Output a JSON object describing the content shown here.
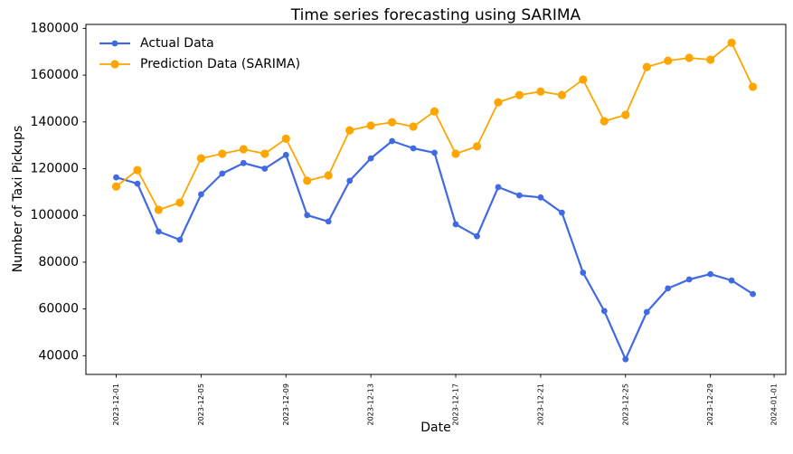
{
  "figure": {
    "title": "Time series forecasting using SARIMA",
    "xlabel": "Date",
    "ylabel": "Number of Taxi Pickups"
  },
  "chart_data": {
    "type": "line",
    "title": "Time series forecasting using SARIMA",
    "xlabel": "Date",
    "ylabel": "Number of Taxi Pickups",
    "grid": false,
    "legend_position": "upper left",
    "ylim": [
      32000,
      181700
    ],
    "yticks": [
      40000,
      60000,
      80000,
      100000,
      120000,
      140000,
      160000,
      180000
    ],
    "xticks": [
      "2023-12-01",
      "2023-12-05",
      "2023-12-09",
      "2023-12-13",
      "2023-12-17",
      "2023-12-21",
      "2023-12-25",
      "2023-12-29",
      "2024-01-01"
    ],
    "x": [
      "2023-12-01",
      "2023-12-02",
      "2023-12-03",
      "2023-12-04",
      "2023-12-05",
      "2023-12-06",
      "2023-12-07",
      "2023-12-08",
      "2023-12-09",
      "2023-12-10",
      "2023-12-11",
      "2023-12-12",
      "2023-12-13",
      "2023-12-14",
      "2023-12-15",
      "2023-12-16",
      "2023-12-17",
      "2023-12-18",
      "2023-12-19",
      "2023-12-20",
      "2023-12-21",
      "2023-12-22",
      "2023-12-23",
      "2023-12-24",
      "2023-12-25",
      "2023-12-26",
      "2023-12-27",
      "2023-12-28",
      "2023-12-29",
      "2023-12-30",
      "2023-12-31"
    ],
    "series": [
      {
        "name": "Actual Data",
        "color": "#4169E1",
        "marker": "circle",
        "values": [
          116300,
          113600,
          93100,
          89600,
          109000,
          117900,
          122400,
          120000,
          125900,
          100100,
          97400,
          114800,
          124400,
          131800,
          128700,
          126800,
          96200,
          91100,
          112100,
          108600,
          107700,
          101200,
          75500,
          59100,
          38500,
          58700,
          68800,
          72600,
          74900,
          72200,
          66400
        ]
      },
      {
        "name": "Prediction Data (SARIMA)",
        "color": "#FFA500",
        "marker": "circle",
        "values": [
          112400,
          119400,
          102400,
          105500,
          124400,
          126400,
          128300,
          126400,
          132800,
          114800,
          117100,
          136400,
          138400,
          139900,
          138000,
          144500,
          126400,
          129500,
          148400,
          151500,
          153000,
          151500,
          158100,
          140300,
          143000,
          163500,
          166200,
          167400,
          166600,
          173900,
          155000
        ]
      }
    ]
  }
}
